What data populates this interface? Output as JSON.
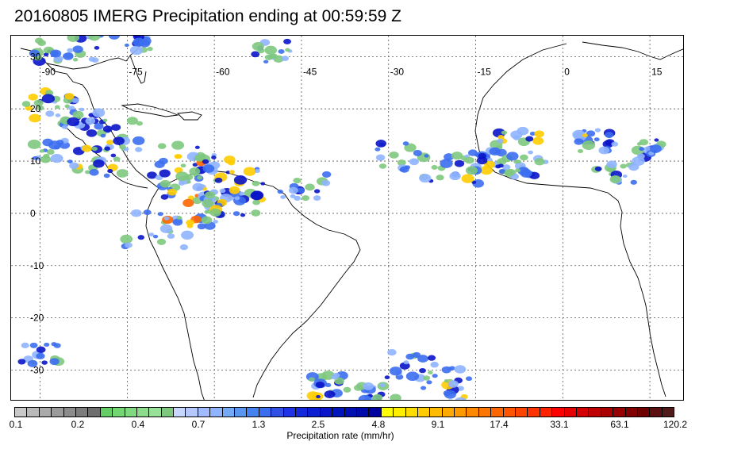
{
  "title": "20160805 IMERG Precipitation ending at 00:59:59 Z",
  "map": {
    "lon_labels": [
      "-90",
      "-75",
      "-60",
      "-45",
      "-30",
      "-15",
      "0",
      "15"
    ],
    "lat_labels": [
      "30",
      "20",
      "10",
      "0",
      "-10",
      "-20",
      "-30"
    ],
    "lon_range": [
      -95,
      21
    ],
    "lat_range": [
      -36,
      34
    ]
  },
  "colorbar": {
    "label": "Precipitation rate (mm/hr)",
    "tick_labels": [
      "0.1",
      "0.2",
      "0.4",
      "0.7",
      "1.3",
      "2.5",
      "4.8",
      "9.1",
      "17.4",
      "33.1",
      "63.1",
      "120.2"
    ],
    "colors": [
      "#c8c8c8",
      "#b9b9b9",
      "#aaaaaa",
      "#9b9b9b",
      "#8c8c8c",
      "#7d7d7d",
      "#6e6e6e",
      "#66cc66",
      "#73d673",
      "#80d980",
      "#8cdc8c",
      "#99e099",
      "#7ec87e",
      "#c8d7ff",
      "#b4c8ff",
      "#a0bbff",
      "#8fb4ff",
      "#74aaf6",
      "#5a96f0",
      "#4682f0",
      "#3c6ef0",
      "#3250e6",
      "#1e32e6",
      "#1428dc",
      "#0a1ed2",
      "#0a14c8",
      "#0014be",
      "#000fb4",
      "#000aaa",
      "#0000a0",
      "#ffff00",
      "#ffee00",
      "#ffdd00",
      "#ffcc00",
      "#ffbb00",
      "#ffaa00",
      "#ff9900",
      "#ff8800",
      "#ff7700",
      "#ff6600",
      "#ff5500",
      "#ff4400",
      "#ff3300",
      "#ff2200",
      "#ff0000",
      "#e60000",
      "#d20000",
      "#be0000",
      "#aa0000",
      "#960000",
      "#820000",
      "#6e0000",
      "#5a1010",
      "#501a1a"
    ]
  }
}
